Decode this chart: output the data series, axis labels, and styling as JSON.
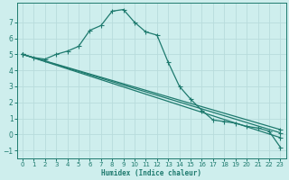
{
  "xlabel": "Humidex (Indice chaleur)",
  "background_color": "#ceeeed",
  "grid_color": "#b8dcdc",
  "line_color": "#1e7a6e",
  "xlim": [
    -0.5,
    23.5
  ],
  "ylim": [
    -1.5,
    8.2
  ],
  "yticks": [
    -1,
    0,
    1,
    2,
    3,
    4,
    5,
    6,
    7
  ],
  "xticks": [
    0,
    1,
    2,
    3,
    4,
    5,
    6,
    7,
    8,
    9,
    10,
    11,
    12,
    13,
    14,
    15,
    16,
    17,
    18,
    19,
    20,
    21,
    22,
    23
  ],
  "main_curve": {
    "x": [
      0,
      1,
      2,
      3,
      4,
      5,
      6,
      7,
      8,
      9,
      10,
      11,
      12,
      13,
      14,
      15,
      16,
      17,
      18,
      19,
      20,
      21,
      22,
      23
    ],
    "y": [
      5.0,
      4.8,
      4.7,
      5.0,
      5.2,
      5.5,
      6.5,
      6.8,
      7.7,
      7.8,
      7.0,
      6.4,
      6.2,
      4.5,
      3.0,
      2.2,
      1.5,
      0.9,
      0.8,
      0.7,
      0.5,
      0.4,
      0.2,
      -0.8
    ]
  },
  "linear_lines": [
    {
      "x": [
        0,
        23
      ],
      "y": [
        5.0,
        0.3
      ]
    },
    {
      "x": [
        0,
        23
      ],
      "y": [
        5.0,
        0.1
      ]
    },
    {
      "x": [
        0,
        23
      ],
      "y": [
        5.0,
        -0.2
      ]
    }
  ]
}
